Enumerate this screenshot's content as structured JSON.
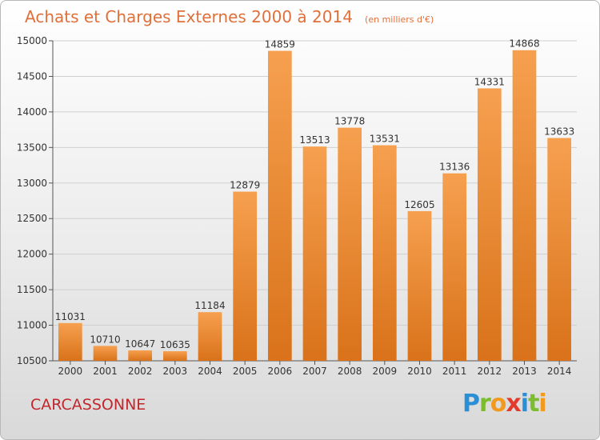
{
  "chart_data": {
    "type": "bar",
    "title": "Achats et Charges Externes 2000 à 2014",
    "subtitle": "(en milliers d'€)",
    "categories": [
      "2000",
      "2001",
      "2002",
      "2003",
      "2004",
      "2005",
      "2006",
      "2007",
      "2008",
      "2009",
      "2010",
      "2011",
      "2012",
      "2013",
      "2014"
    ],
    "values": [
      11031,
      10710,
      10647,
      10635,
      11184,
      12879,
      14859,
      13513,
      13778,
      13531,
      12605,
      13136,
      14331,
      14868,
      13633
    ],
    "ylim": [
      10500,
      15000
    ],
    "yticks": [
      10500,
      11000,
      11500,
      12000,
      12500,
      13000,
      13500,
      14000,
      14500,
      15000
    ],
    "grid": true,
    "xlabel": "",
    "ylabel": "",
    "colors": {
      "bar_top": "#f6a04f",
      "bar_bottom": "#d9721a",
      "title": "#e0703a"
    }
  },
  "footer": {
    "city": "CARCASSONNE",
    "brand_letters": [
      {
        "ch": "P",
        "color": "#2a8fd6"
      },
      {
        "ch": "r",
        "color": "#7dbb2f"
      },
      {
        "ch": "o",
        "color": "#f29a1f"
      },
      {
        "ch": "x",
        "color": "#e23b2e"
      },
      {
        "ch": "i",
        "color": "#2a8fd6"
      },
      {
        "ch": "t",
        "color": "#7dbb2f"
      },
      {
        "ch": "i",
        "color": "#f29a1f"
      }
    ]
  }
}
